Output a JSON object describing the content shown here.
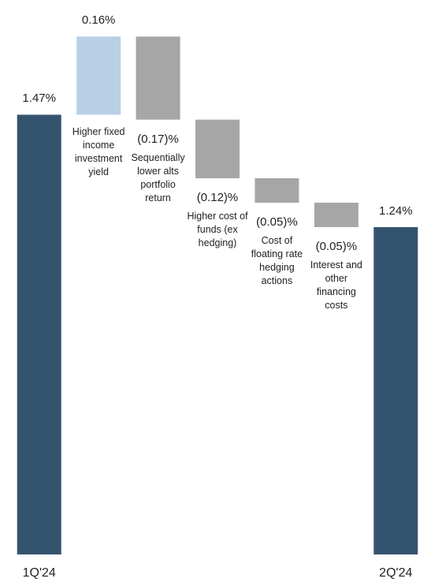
{
  "chart_data": {
    "type": "waterfall",
    "categories": [
      "1Q'24",
      "Higher fixed income investment yield",
      "Sequentially lower alts portfolio return",
      "Higher cost of funds (ex hedging)",
      "Cost of floating rate hedging actions",
      "Interest and other financing costs",
      "2Q'24"
    ],
    "values": [
      1.47,
      0.16,
      -0.17,
      -0.12,
      -0.05,
      -0.05,
      1.24
    ],
    "value_labels": [
      "1.47%",
      "0.16%",
      "(0.17)%",
      "(0.12)%",
      "(0.05)%",
      "(0.05)%",
      "1.24%"
    ],
    "colors": {
      "total": "#34536f",
      "increase": "#b8cfe6",
      "decrease": "#a6a6a6"
    },
    "ylim": [
      0.57,
      1.7
    ]
  }
}
